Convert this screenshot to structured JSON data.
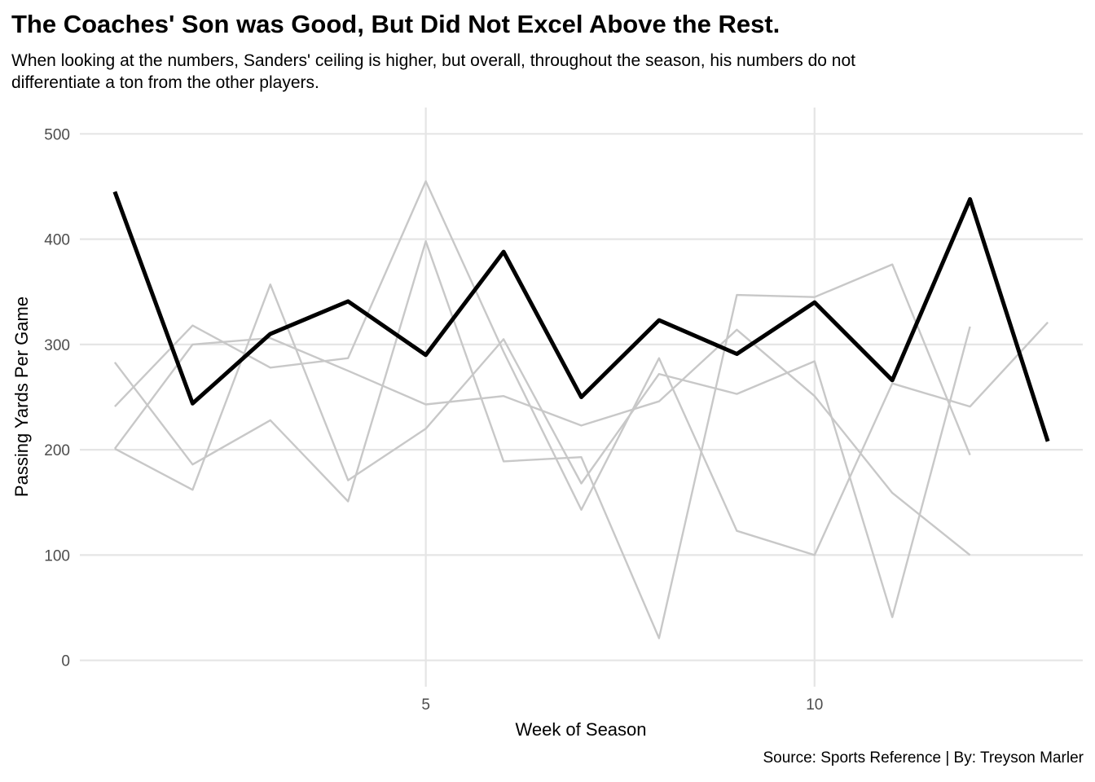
{
  "chart_data": {
    "type": "line",
    "title": "The Coaches' Son was Good, But Did Not Excel Above the Rest.",
    "subtitle_lines": [
      "When looking at the numbers, Sanders' ceiling is higher, but overall, throughout the season, his numbers do not",
      "differentiate a ton from the other players."
    ],
    "xlabel": "Week of Season",
    "ylabel": "Passing Yards Per Game",
    "caption": "Source: Sports Reference | By: Treyson Marler",
    "xlim": [
      0.55,
      13.45
    ],
    "ylim": [
      -25,
      525
    ],
    "x_ticks": [
      5,
      10
    ],
    "x_tick_labels": [
      "5",
      "10"
    ],
    "y_ticks": [
      0,
      100,
      200,
      300,
      400,
      500
    ],
    "y_tick_labels": [
      "0",
      "100",
      "200",
      "300",
      "400",
      "500"
    ],
    "grid": true,
    "legend": "none",
    "highlight_color": "#000000",
    "other_color": "#c8c8c8",
    "grid_color": "#e5e5e5",
    "series": [
      {
        "highlight": false,
        "x": [
          1,
          2,
          3,
          4,
          5,
          6,
          7,
          8,
          9,
          10,
          11,
          12
        ],
        "values": [
          283,
          186,
          228,
          151,
          398,
          189,
          193,
          21,
          347,
          345,
          376,
          195
        ]
      },
      {
        "highlight": false,
        "x": [
          1,
          2,
          3,
          4,
          5,
          6,
          7,
          8,
          9,
          10,
          11,
          12,
          13
        ],
        "values": [
          241,
          318,
          278,
          287,
          455,
          293,
          143,
          287,
          123,
          100,
          263,
          241,
          321
        ]
      },
      {
        "highlight": false,
        "x": [
          1,
          2,
          3,
          4,
          5,
          6,
          7,
          8,
          9,
          10,
          11,
          12
        ],
        "values": [
          201,
          162,
          357,
          171,
          220,
          305,
          168,
          272,
          253,
          284,
          41,
          317
        ]
      },
      {
        "highlight": false,
        "x": [
          1,
          2,
          3,
          4,
          5,
          6,
          7,
          8,
          9,
          10,
          11,
          12
        ],
        "values": [
          201,
          300,
          306,
          275,
          243,
          251,
          223,
          246,
          314,
          251,
          159,
          100
        ]
      },
      {
        "highlight": true,
        "x": [
          1,
          2,
          3,
          4,
          5,
          6,
          7,
          8,
          9,
          10,
          11,
          12,
          13
        ],
        "values": [
          445,
          244,
          310,
          341,
          290,
          388,
          250,
          323,
          291,
          340,
          266,
          438,
          208
        ]
      }
    ]
  }
}
